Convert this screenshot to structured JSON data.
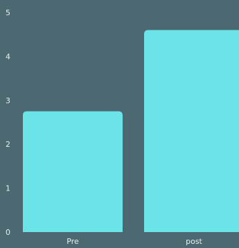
{
  "chart_data": {
    "type": "bar",
    "categories": [
      "Pre",
      "post"
    ],
    "values": [
      2.75,
      4.6
    ],
    "title": "",
    "xlabel": "",
    "ylabel": "",
    "ylim": [
      0,
      5
    ],
    "yticks": [
      "0",
      "1",
      "2",
      "3",
      "4",
      "5"
    ],
    "grid": false,
    "legend": "none",
    "colors": {
      "background": "#4c6870",
      "bar": "#6ae4e9",
      "text": "#e6f0f2"
    }
  }
}
